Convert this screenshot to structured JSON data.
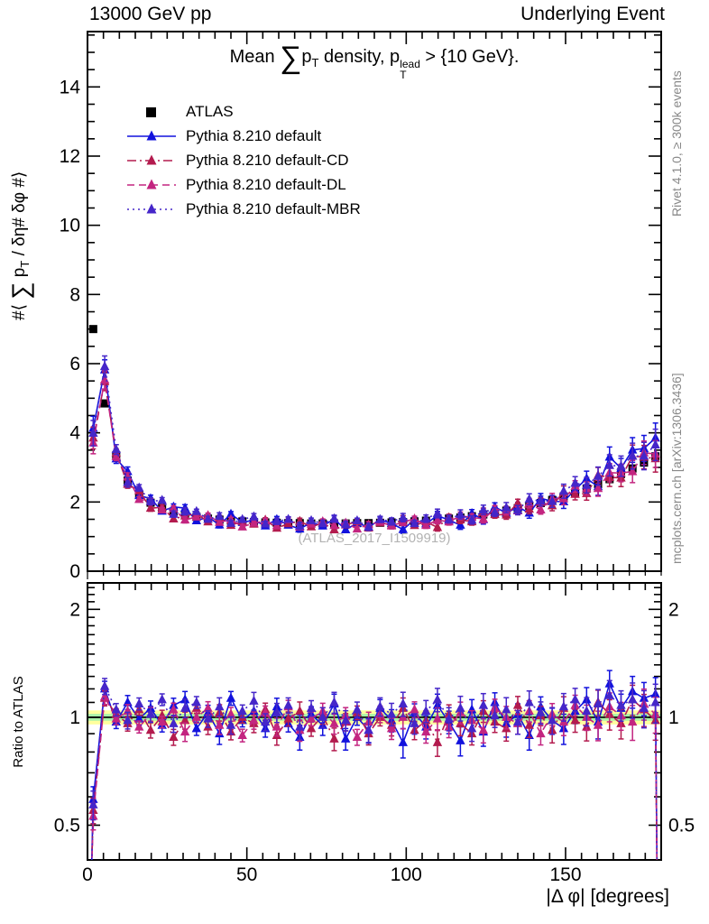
{
  "header": {
    "left": "13000 GeV pp",
    "right": "Underlying Event"
  },
  "title": {
    "pre": "Mean ",
    "sum": "∑",
    "p": "p",
    "p_sub": "T",
    "mid": " density, p",
    "sup": "lead",
    "sub": "T",
    "post": " > {10 GeV}."
  },
  "axis_labels": {
    "y_main_pre": "#⟨ ",
    "y_main_sum": "∑",
    "y_main_p": " p",
    "y_main_sub": "T",
    "y_main_post": " / δη# δφ #⟩",
    "y_ratio": "Ratio to ATLAS",
    "x": "|Δ φ| [degrees]"
  },
  "watermark": "(ATLAS_2017_I1509919)",
  "side_notes": {
    "top": "Rivet 4.1.0, ≥ 300k events",
    "bottom": "mcplots.cern.ch [arXiv:1306.3436]"
  },
  "chart_data": {
    "type": "scatter",
    "title": "Mean sum(pT) density, pT_lead > {10 GeV}.",
    "xlabel": "|Δ φ| [degrees]",
    "x_range": [
      0,
      180
    ],
    "x_major": 50,
    "x_minor": 5,
    "x_tick_labels": [
      {
        "v": 0,
        "t": "0"
      },
      {
        "v": 50,
        "t": "50"
      },
      {
        "v": 100,
        "t": "100"
      },
      {
        "v": 150,
        "t": "150"
      }
    ],
    "bins": {
      "start": 1.8,
      "step": 3.6,
      "n": 50
    },
    "main_axis": {
      "range": [
        0,
        15.6
      ],
      "major": 2,
      "minor": 0.5,
      "grid": false,
      "tick_labels": [
        {
          "v": 0,
          "t": "0"
        },
        {
          "v": 2,
          "t": "2"
        },
        {
          "v": 4,
          "t": "4"
        },
        {
          "v": 6,
          "t": "6"
        },
        {
          "v": 8,
          "t": "8"
        },
        {
          "v": 10,
          "t": "10"
        },
        {
          "v": 12,
          "t": "12"
        },
        {
          "v": 14,
          "t": "14"
        }
      ]
    },
    "ratio_axis": {
      "scale": "log",
      "range": [
        0.4,
        2.37
      ],
      "tick_labels": [
        {
          "v": 0.5,
          "t": "0.5"
        },
        {
          "v": 1,
          "t": "1"
        },
        {
          "v": 2,
          "t": "2"
        }
      ],
      "minor": [
        0.4,
        0.6,
        0.7,
        0.8,
        0.9,
        1.1,
        1.2,
        1.3,
        1.4,
        1.5,
        1.6,
        1.7,
        1.8,
        1.9,
        2.1,
        2.2,
        2.3
      ]
    },
    "band": {
      "outer_frac": 0.045,
      "inner_frac": 0.022,
      "outer_color": "#ffff9e",
      "inner_color": "#a9f3a9"
    },
    "legend_position": "top-left",
    "reference": {
      "name": "ATLAS",
      "color": "#000000",
      "marker": "square",
      "values": [
        7.0,
        4.85,
        3.35,
        2.62,
        2.21,
        1.98,
        1.83,
        1.72,
        1.63,
        1.57,
        1.52,
        1.49,
        1.46,
        1.44,
        1.42,
        1.41,
        1.4,
        1.39,
        1.39,
        1.38,
        1.38,
        1.38,
        1.38,
        1.39,
        1.39,
        1.4,
        1.41,
        1.42,
        1.44,
        1.46,
        1.49,
        1.52,
        1.55,
        1.59,
        1.64,
        1.69,
        1.75,
        1.82,
        1.89,
        1.97,
        2.06,
        2.16,
        2.27,
        2.39,
        2.52,
        2.66,
        2.81,
        2.97,
        3.14,
        3.32
      ]
    },
    "series": [
      {
        "name": "Pythia 8.210 default",
        "color": "#1212dd",
        "dash": "",
        "marker": "triangle",
        "err_scale": 1.0,
        "ratio": [
          0.59,
          1.2,
          0.97,
          1.1,
          0.99,
          1.06,
          0.95,
          1.08,
          1.12,
          0.93,
          1.03,
          0.9,
          1.13,
          0.98,
          1.04,
          0.93,
          1.07,
          0.96,
          0.88,
          1.02,
          0.95,
          1.09,
          0.87,
          1.0,
          0.92,
          1.06,
          0.98,
          0.85,
          1.03,
          0.94,
          1.08,
          0.97,
          0.86,
          1.05,
          0.91,
          1.1,
          0.96,
          1.02,
          0.89,
          1.07,
          0.98,
          0.93,
          1.04,
          1.12,
          0.97,
          1.24,
          1.06,
          1.18,
          1.13,
          1.16
        ]
      },
      {
        "name": "Pythia 8.210 default-CD",
        "color": "#b31b4e",
        "dash": "10 4 2 4",
        "marker": "triangle",
        "err_scale": 0.9,
        "ratio": [
          0.55,
          1.13,
          1.02,
          0.96,
          1.05,
          0.92,
          1.01,
          0.88,
          0.98,
          1.06,
          0.94,
          1.03,
          0.91,
          1.0,
          0.96,
          1.05,
          0.89,
          0.99,
          1.04,
          0.93,
          1.01,
          0.87,
          0.97,
          1.03,
          0.9,
          1.0,
          0.95,
          1.06,
          0.92,
          0.98,
          0.85,
          1.02,
          0.96,
          0.9,
          1.04,
          0.97,
          0.93,
          1.08,
          0.95,
          1.01,
          0.92,
          1.06,
          0.98,
          0.94,
          1.1,
          1.02,
          0.96,
          1.12,
          1.05,
          0.98
        ]
      },
      {
        "name": "Pythia 8.210 default-DL",
        "color": "#c32580",
        "dash": "8 5",
        "marker": "triangle",
        "err_scale": 0.9,
        "ratio": [
          0.53,
          1.14,
          0.99,
          1.04,
          0.94,
          1.02,
          0.97,
          1.05,
          0.91,
          1.0,
          1.06,
          0.95,
          1.02,
          0.89,
          0.98,
          1.03,
          0.94,
          1.07,
          0.92,
          0.99,
          1.04,
          0.96,
          1.01,
          0.88,
          0.97,
          1.02,
          0.93,
          1.0,
          1.05,
          0.91,
          0.99,
          0.94,
          1.03,
          0.98,
          0.92,
          1.06,
          1.0,
          0.96,
          1.04,
          0.9,
          1.02,
          0.97,
          1.08,
          1.0,
          0.95,
          1.07,
          1.01,
          0.97,
          1.09,
          1.02
        ]
      },
      {
        "name": "Pythia 8.210 default-MBR",
        "color": "#4526c9",
        "dash": "2 4",
        "marker": "triangle",
        "err_scale": 1.05,
        "ratio": [
          0.57,
          1.22,
          1.05,
          0.98,
          1.09,
          1.02,
          1.12,
          0.96,
          1.06,
          1.1,
          0.99,
          1.07,
          0.95,
          1.04,
          1.11,
          0.97,
          1.03,
          1.08,
          0.94,
          1.06,
          1.0,
          1.1,
          0.98,
          1.05,
          0.92,
          1.07,
          1.02,
          1.09,
          0.96,
          1.04,
          1.12,
          0.99,
          1.06,
          0.93,
          1.08,
          1.01,
          1.05,
          0.97,
          1.1,
          1.03,
          0.98,
          1.07,
          1.12,
          1.04,
          1.09,
          1.15,
          1.08,
          1.12,
          1.06,
          1.1
        ]
      }
    ],
    "ratio_err": [
      0.05,
      0.06,
      0.04,
      0.05,
      0.04,
      0.05,
      0.04,
      0.05,
      0.06,
      0.04,
      0.05,
      0.06,
      0.05,
      0.04,
      0.06,
      0.05,
      0.06,
      0.05,
      0.07,
      0.05,
      0.06,
      0.07,
      0.06,
      0.05,
      0.07,
      0.06,
      0.07,
      0.08,
      0.06,
      0.07,
      0.08,
      0.07,
      0.08,
      0.07,
      0.08,
      0.07,
      0.08,
      0.07,
      0.08,
      0.07,
      0.08,
      0.09,
      0.08,
      0.09,
      0.1,
      0.11,
      0.1,
      0.12,
      0.12,
      0.13
    ],
    "edge_dropoff": {
      "left_x": 1.0,
      "right_x": 178.8,
      "y": 0.3
    }
  }
}
